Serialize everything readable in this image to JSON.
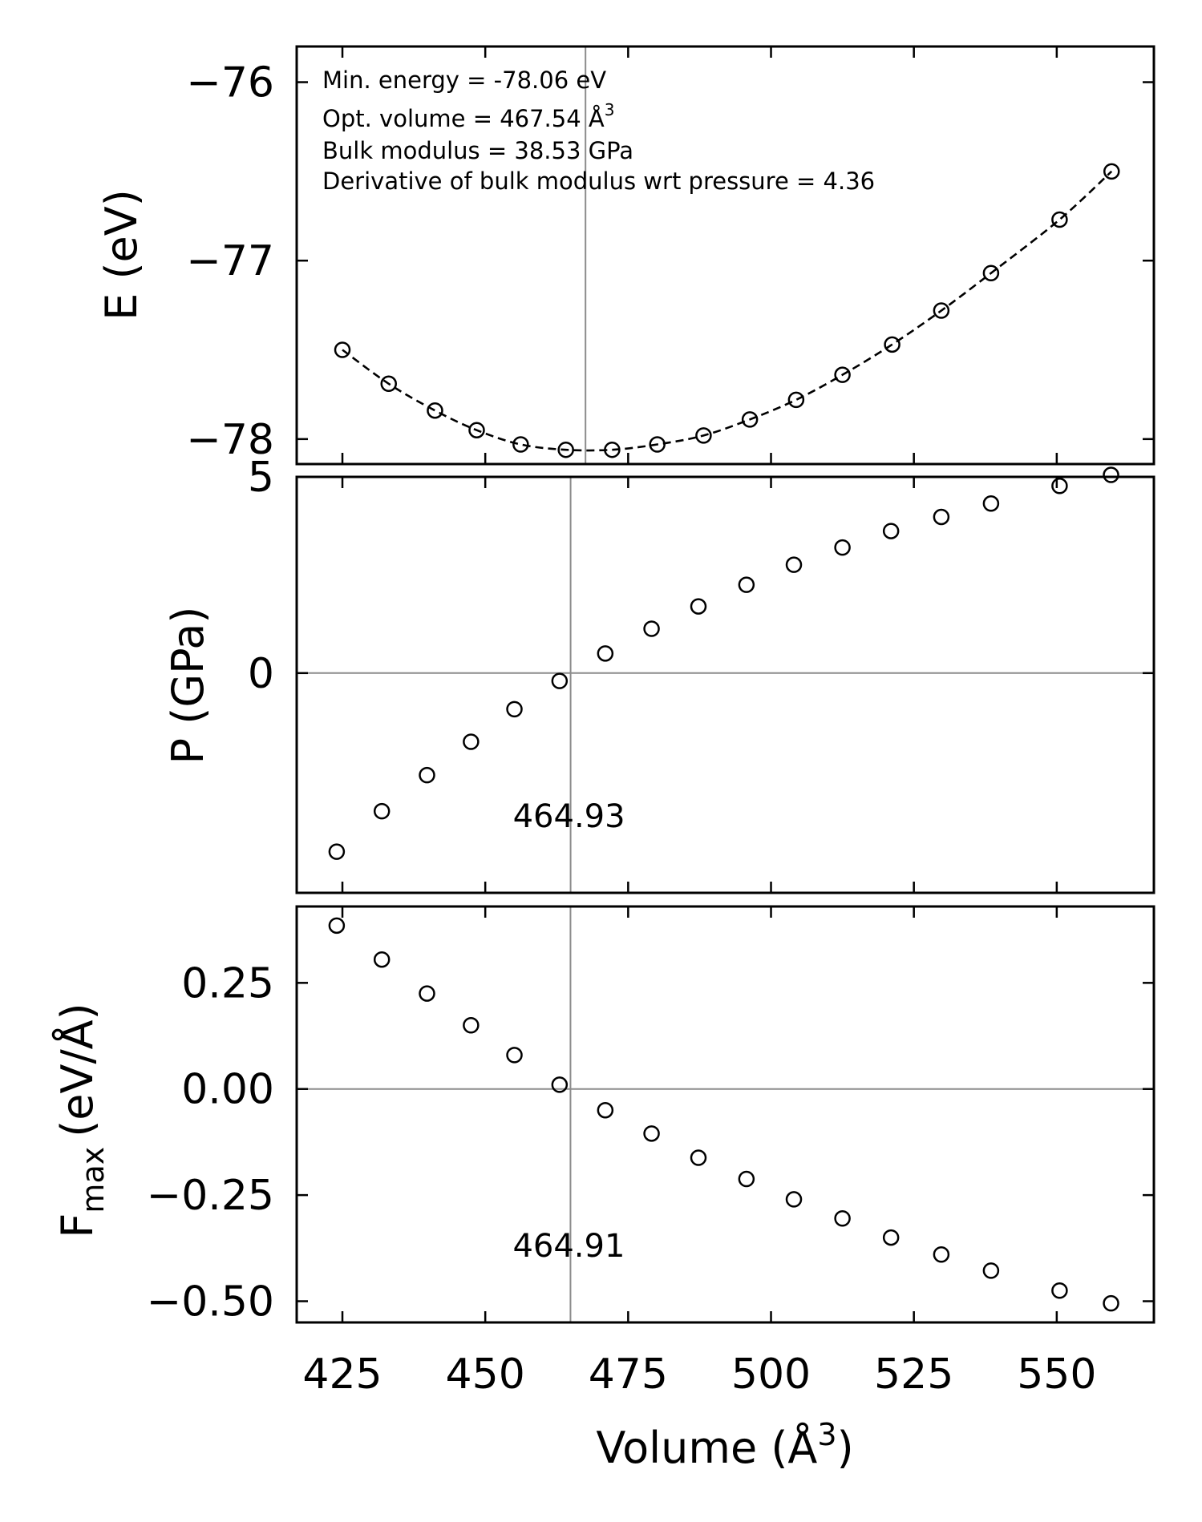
{
  "chart_data": [
    {
      "type": "scatter",
      "panel": "energy",
      "ylabel": "E (eV)",
      "xlim": [
        417,
        567
      ],
      "ylim": [
        -78.14,
        -75.8
      ],
      "yticks": [
        -76,
        -77,
        -78
      ],
      "ytick_labels": [
        "−76",
        "−77",
        "−78"
      ],
      "x": [
        425.0,
        433.1,
        441.2,
        448.5,
        456.2,
        464.1,
        472.2,
        480.1,
        488.2,
        496.3,
        504.4,
        512.5,
        521.2,
        529.8,
        538.5,
        550.5,
        559.6
      ],
      "y": [
        -77.5,
        -77.69,
        -77.84,
        -77.95,
        -78.03,
        -78.06,
        -78.06,
        -78.03,
        -77.98,
        -77.89,
        -77.78,
        -77.64,
        -77.47,
        -77.28,
        -77.07,
        -76.77,
        -76.5
      ],
      "fit_style": "dashed",
      "ref_vline": 467.54,
      "annotations": [
        "Min. energy = -78.06 eV",
        "Opt. volume = 467.54 Å",
        "Bulk modulus = 38.53 GPa",
        "Derivative of bulk modulus wrt pressure = 4.36"
      ],
      "annotation_superscript": "3"
    },
    {
      "type": "scatter",
      "panel": "pressure",
      "ylabel": "P (GPa)",
      "xlim": [
        417,
        567
      ],
      "ylim": [
        -5.6,
        5.0
      ],
      "yticks": [
        5,
        0
      ],
      "ytick_labels": [
        "5",
        "0"
      ],
      "x": [
        424.0,
        431.9,
        439.8,
        447.5,
        455.1,
        463.0,
        471.0,
        479.1,
        487.3,
        495.7,
        504.0,
        512.5,
        521.0,
        529.8,
        538.5,
        550.5,
        559.5
      ],
      "y": [
        -4.55,
        -3.52,
        -2.6,
        -1.75,
        -0.92,
        -0.2,
        0.5,
        1.13,
        1.7,
        2.25,
        2.76,
        3.2,
        3.62,
        3.98,
        4.32,
        4.77,
        5.05
      ],
      "ref_vline": 464.93,
      "ref_hline": 0,
      "vline_label": "464.93"
    },
    {
      "type": "scatter",
      "panel": "force",
      "ylabel_main": "F",
      "ylabel_sub": "max",
      "ylabel_rest": "(eV/Å)",
      "xlabel": "Volume (Å",
      "xlabel_sup": "3",
      "xlabel_close": ")",
      "xlim": [
        417,
        567
      ],
      "ylim": [
        -0.55,
        0.43
      ],
      "xticks": [
        425,
        450,
        475,
        500,
        525,
        550
      ],
      "xtick_labels": [
        "425",
        "450",
        "475",
        "500",
        "525",
        "550"
      ],
      "yticks": [
        0.25,
        0.0,
        -0.25,
        -0.5
      ],
      "ytick_labels": [
        "0.25",
        "0.00",
        "−0.25",
        "−0.50"
      ],
      "x": [
        424.0,
        431.9,
        439.8,
        447.5,
        455.1,
        463.0,
        471.0,
        479.1,
        487.3,
        495.7,
        504.0,
        512.5,
        521.0,
        529.8,
        538.5,
        550.5,
        559.5
      ],
      "y": [
        0.385,
        0.305,
        0.225,
        0.15,
        0.08,
        0.01,
        -0.05,
        -0.105,
        -0.162,
        -0.212,
        -0.26,
        -0.305,
        -0.35,
        -0.39,
        -0.428,
        -0.475,
        -0.505
      ],
      "ref_vline": 464.91,
      "ref_hline": 0,
      "vline_label": "464.91"
    }
  ]
}
